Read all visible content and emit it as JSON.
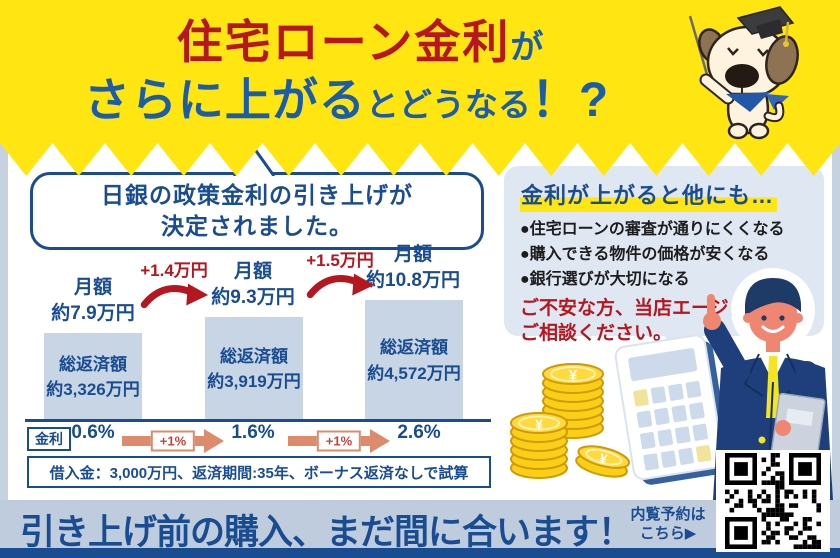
{
  "colors": {
    "yellow": "#ffe512",
    "red": "#b5161f",
    "blue": "#1b5cab",
    "dark": "#1a4c92",
    "bar": "#c7d5e5",
    "salmon": "#dd8a6d",
    "panel": "#dfe7f2",
    "banner": "#bfccdd",
    "strip": "#c7d2e1"
  },
  "header": {
    "line1_main": "住宅ローン金利",
    "line1_suffix": "が",
    "line2_main": "さらに上がる",
    "line2_mid": "とどうなる",
    "line2_punct": "！?"
  },
  "announcement": {
    "line1": "日銀の政策金利の引き上げが",
    "line2": "決定されました。"
  },
  "chart_data": {
    "type": "bar",
    "title": "",
    "categories": [
      "金利0.6%",
      "金利1.6%",
      "金利2.6%"
    ],
    "series": [
      {
        "name": "月額返済額(万円)",
        "values": [
          7.9,
          9.3,
          10.8
        ]
      },
      {
        "name": "総返済額(万円)",
        "values": [
          3326,
          3919,
          4572
        ]
      }
    ],
    "bars": [
      {
        "monthly_label": "月額",
        "monthly_value": "約7.9万円",
        "total_label": "総返済額",
        "total_value": "約3,326万円",
        "total_man_yen": 3326,
        "rate": "0.6%"
      },
      {
        "monthly_label": "月額",
        "monthly_value": "約9.3万円",
        "total_label": "総返済額",
        "total_value": "約3,919万円",
        "total_man_yen": 3919,
        "rate": "1.6%"
      },
      {
        "monthly_label": "月額",
        "monthly_value": "約10.8万円",
        "total_label": "総返済額",
        "total_value": "約4,572万円",
        "total_man_yen": 4572,
        "rate": "2.6%"
      }
    ],
    "increases": [
      "+1.4万円",
      "+1.5万円"
    ],
    "rate_row": {
      "label": "金利",
      "values": [
        "0.6%",
        "1.6%",
        "2.6%"
      ],
      "step_label": "+1%"
    },
    "footnote": "借入金：3,000万円、返済期間:35年、ボーナス返済なしで試算",
    "ylim": [
      0,
      4572
    ],
    "grid": false
  },
  "side_panel": {
    "title": "金利が上がると他にも…",
    "bullets": [
      "●住宅ローンの審査が通りにくくなる",
      "●購入できる物件の価格が安くなる",
      "●銀行選びが大切になる"
    ],
    "cta_line1": "ご不安な方、当店エージェントに",
    "cta_line2": "ご相談ください。"
  },
  "illustrations": {
    "dog_mascot": "dog with graduation cap and pointer stick",
    "agent_man": "agent in navy suit pointing up, holding folder",
    "coins_yen_symbol": "¥",
    "calculator": "calculator",
    "qr": "QR code"
  },
  "footer": {
    "headline": "引き上げ前の購入、まだ間に合います！",
    "cta_line1": "内覧予約は",
    "cta_line2": "こちら▶"
  }
}
